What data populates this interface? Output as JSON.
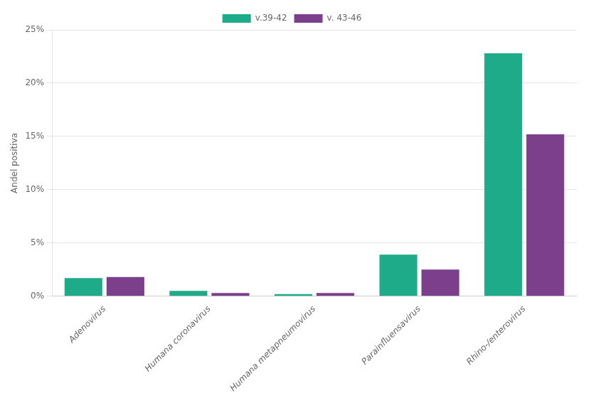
{
  "chart_data": {
    "type": "bar",
    "categories": [
      "Adenovirus",
      "Humana coronavirus",
      "Humana metapneumovirus",
      "Parainfluensavirus",
      "Rhino-/enterovirus"
    ],
    "series": [
      {
        "name": "v.39-42",
        "color": "#1dab8a",
        "values": [
          0.017,
          0.005,
          0.002,
          0.039,
          0.228
        ]
      },
      {
        "name": "v. 43-46",
        "color": "#7b3f8c",
        "values": [
          0.018,
          0.003,
          0.003,
          0.025,
          0.152
        ]
      }
    ],
    "ylabel": "Andel positiva",
    "ylim": [
      0,
      0.25
    ],
    "yticks": [
      {
        "value": 0,
        "label": "0%"
      },
      {
        "value": 0.05,
        "label": "5%"
      },
      {
        "value": 0.1,
        "label": "10%"
      },
      {
        "value": 0.15,
        "label": "15%"
      },
      {
        "value": 0.2,
        "label": "20%"
      },
      {
        "value": 0.25,
        "label": "25%"
      }
    ],
    "grid": true,
    "legend": "top"
  }
}
